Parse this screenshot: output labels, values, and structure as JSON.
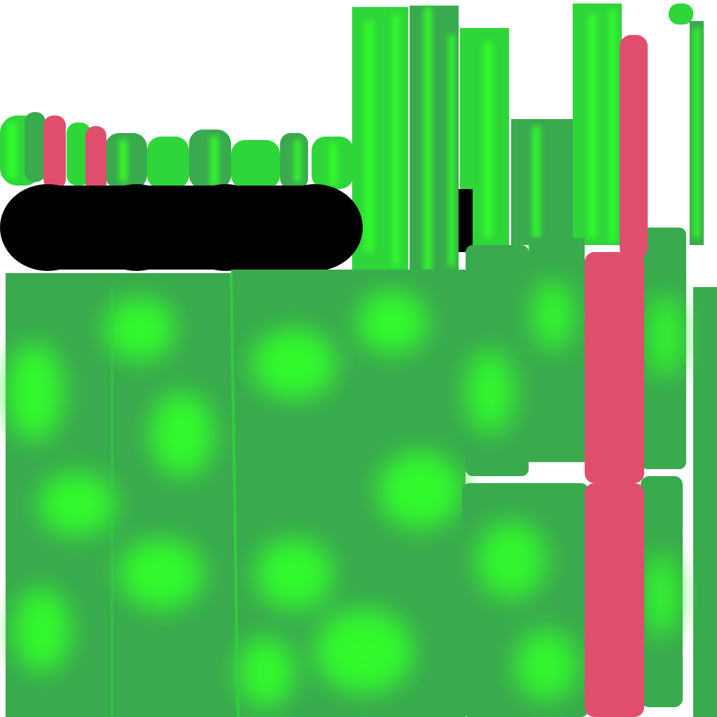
{
  "texture": {
    "colors": {
      "background": "#ffffff",
      "base_green": "#3aaa4e",
      "bright_green": "#33ff2b",
      "mid_green": "#2fd63a",
      "accent_pink": "#e04e6e",
      "shadow": "#000000"
    }
  }
}
